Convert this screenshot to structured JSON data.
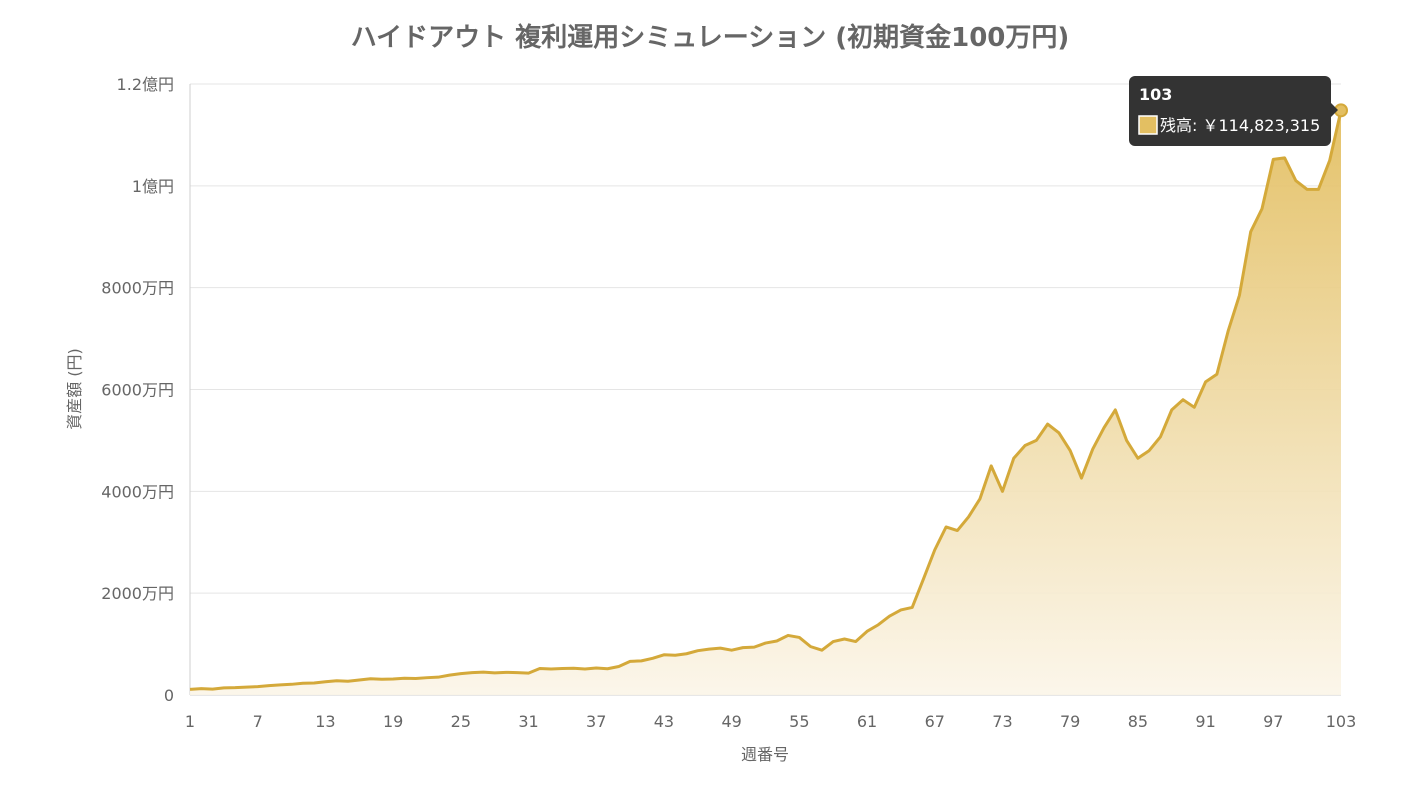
{
  "chart_data": {
    "type": "area",
    "title": "ハイドアウト 複利運用シミュレーション (初期資金100万円)",
    "xlabel": "週番号",
    "ylabel": "資産額 (円)",
    "ylim": [
      0,
      120000000
    ],
    "yticks": [
      {
        "value": 0,
        "label": "0"
      },
      {
        "value": 20000000,
        "label": "2000万円"
      },
      {
        "value": 40000000,
        "label": "4000万円"
      },
      {
        "value": 60000000,
        "label": "6000万円"
      },
      {
        "value": 80000000,
        "label": "8000万円"
      },
      {
        "value": 100000000,
        "label": "1億円"
      },
      {
        "value": 120000000,
        "label": "1.2億円"
      }
    ],
    "xticks": [
      1,
      7,
      13,
      19,
      25,
      31,
      37,
      43,
      49,
      55,
      61,
      67,
      73,
      79,
      85,
      91,
      97,
      103
    ],
    "grid": true,
    "colors": {
      "line": "#d4a93a",
      "fill_top": "#e3bf62",
      "fill_bottom": "#fbf5e8",
      "tooltip_bg": "#333333"
    },
    "series": [
      {
        "name": "残高",
        "x": [
          1,
          2,
          3,
          4,
          5,
          6,
          7,
          8,
          9,
          10,
          11,
          12,
          13,
          14,
          15,
          16,
          17,
          18,
          19,
          20,
          21,
          22,
          23,
          24,
          25,
          26,
          27,
          28,
          29,
          30,
          31,
          32,
          33,
          34,
          35,
          36,
          37,
          38,
          39,
          40,
          41,
          42,
          43,
          44,
          45,
          46,
          47,
          48,
          49,
          50,
          51,
          52,
          53,
          54,
          55,
          56,
          57,
          58,
          59,
          60,
          61,
          62,
          63,
          64,
          65,
          66,
          67,
          68,
          69,
          70,
          71,
          72,
          73,
          74,
          75,
          76,
          77,
          78,
          79,
          80,
          81,
          82,
          83,
          84,
          85,
          86,
          87,
          88,
          89,
          90,
          91,
          92,
          93,
          94,
          95,
          96,
          97,
          98,
          99,
          100,
          101,
          102,
          103
        ],
        "values": [
          1100000,
          1250000,
          1150000,
          1400000,
          1450000,
          1550000,
          1650000,
          1850000,
          2000000,
          2100000,
          2300000,
          2350000,
          2600000,
          2800000,
          2700000,
          2950000,
          3200000,
          3100000,
          3150000,
          3300000,
          3250000,
          3400000,
          3500000,
          3900000,
          4200000,
          4400000,
          4500000,
          4350000,
          4450000,
          4400000,
          4300000,
          5200000,
          5100000,
          5200000,
          5250000,
          5100000,
          5300000,
          5150000,
          5600000,
          6600000,
          6700000,
          7200000,
          7900000,
          7800000,
          8100000,
          8700000,
          9000000,
          9200000,
          8800000,
          9300000,
          9400000,
          10200000,
          10600000,
          11700000,
          11300000,
          9500000,
          8800000,
          10500000,
          11000000,
          10500000,
          12500000,
          13800000,
          15500000,
          16700000,
          17200000,
          22800000,
          28500000,
          33000000,
          32300000,
          35000000,
          38500000,
          45000000,
          40000000,
          46500000,
          49000000,
          50000000,
          53200000,
          51500000,
          48000000,
          42600000,
          48300000,
          52500000,
          56000000,
          50000000,
          46500000,
          48000000,
          50700000,
          56000000,
          58000000,
          56500000,
          61500000,
          63000000,
          71500000,
          78500000,
          91000000,
          95500000,
          105200000,
          105500000,
          101000000,
          99300000,
          99300000,
          105000000,
          114823315
        ]
      }
    ],
    "tooltip": {
      "title": "103",
      "label": "残高: ￥114,823,315"
    }
  }
}
